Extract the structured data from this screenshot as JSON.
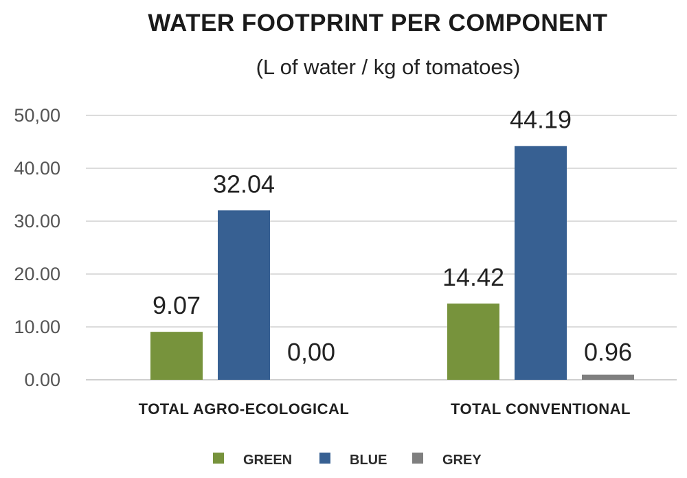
{
  "chart_data": {
    "type": "bar",
    "title": "WATER FOOTPRINT PER COMPONENT",
    "subtitle": "(L of water / kg of tomatoes)",
    "categories": [
      "TOTAL AGRO-ECOLOGICAL",
      "TOTAL CONVENTIONAL"
    ],
    "series": [
      {
        "name": "GREEN",
        "color": "#77933c",
        "values": [
          9.07,
          14.42
        ],
        "labels": [
          "9.07",
          "14.42"
        ]
      },
      {
        "name": "BLUE",
        "color": "#376092",
        "values": [
          32.04,
          44.19
        ],
        "labels": [
          "32.04",
          "44.19"
        ]
      },
      {
        "name": "GREY",
        "color": "#7f7f7f",
        "values": [
          0.0,
          0.96
        ],
        "labels": [
          "0,00",
          "0.96"
        ]
      }
    ],
    "yticks": [
      "0.00",
      "10.00",
      "20.00",
      "30.00",
      "40.00",
      "50,00"
    ],
    "ylim": [
      0,
      50
    ],
    "grid": true,
    "legend": "bottom"
  }
}
